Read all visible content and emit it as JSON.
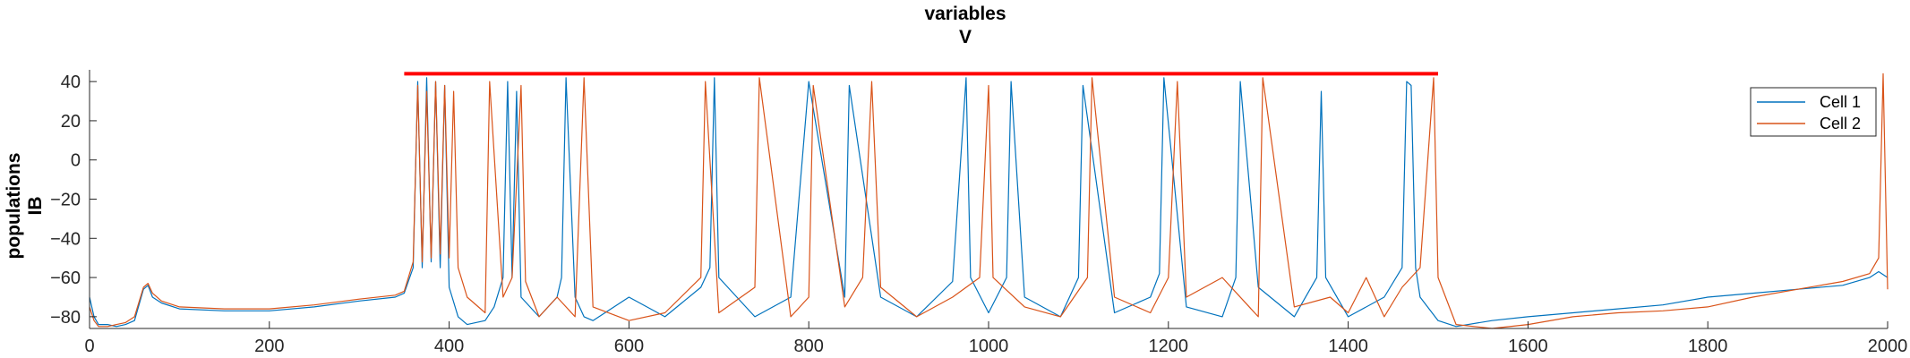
{
  "chart_data": {
    "type": "line",
    "title": "variables",
    "subtitle": "V",
    "ylabel": "populations",
    "ylabel2": "IB",
    "xlabel": "",
    "xlim": [
      0,
      2000
    ],
    "ylim": [
      -86,
      46
    ],
    "xticks": [
      0,
      200,
      400,
      600,
      800,
      1000,
      1200,
      1400,
      1600,
      1800,
      2000
    ],
    "yticks": [
      -80,
      -60,
      -40,
      -20,
      0,
      20,
      40
    ],
    "xtick_labels": [
      "0",
      "200",
      "400",
      "600",
      "800",
      "1000",
      "1200",
      "1400",
      "1600",
      "1800",
      "2000"
    ],
    "ytick_labels": [
      "-80",
      "-60",
      "-40",
      "-20",
      "0",
      "20",
      "40"
    ],
    "grid": false,
    "legend_position": "top-right",
    "stim_bar": {
      "x": [
        350,
        1500
      ],
      "y": 44,
      "color": "#ff0000"
    },
    "series": [
      {
        "name": "Cell 1",
        "color": "#0072BD",
        "x": [
          0,
          5,
          10,
          20,
          30,
          40,
          50,
          60,
          65,
          70,
          80,
          100,
          150,
          200,
          250,
          300,
          340,
          350,
          360,
          365,
          370,
          375,
          380,
          385,
          390,
          395,
          400,
          410,
          420,
          440,
          450,
          460,
          465,
          470,
          475,
          480,
          500,
          520,
          525,
          530,
          540,
          550,
          560,
          600,
          640,
          680,
          690,
          695,
          700,
          740,
          780,
          800,
          840,
          845,
          880,
          920,
          960,
          975,
          980,
          1000,
          1020,
          1025,
          1040,
          1080,
          1100,
          1105,
          1140,
          1180,
          1190,
          1195,
          1220,
          1260,
          1275,
          1280,
          1300,
          1340,
          1365,
          1370,
          1375,
          1400,
          1440,
          1460,
          1465,
          1470,
          1475,
          1480,
          1500,
          1520,
          1560,
          1600,
          1650,
          1700,
          1750,
          1800,
          1850,
          1900,
          1950,
          1980,
          1990,
          2000
        ],
        "y": [
          -70,
          -80,
          -84,
          -84,
          -85,
          -84,
          -82,
          -66,
          -64,
          -70,
          -73,
          -76,
          -77,
          -77,
          -75,
          -72,
          -70,
          -68,
          -55,
          40,
          -55,
          42,
          -52,
          40,
          -55,
          38,
          -65,
          -80,
          -84,
          -82,
          -75,
          -60,
          40,
          -60,
          35,
          -70,
          -80,
          -70,
          -60,
          42,
          -70,
          -80,
          -82,
          -70,
          -80,
          -65,
          -55,
          42,
          -60,
          -80,
          -70,
          40,
          -70,
          38,
          -70,
          -80,
          -62,
          42,
          -60,
          -78,
          -60,
          40,
          -70,
          -80,
          -60,
          38,
          -78,
          -70,
          -58,
          42,
          -75,
          -80,
          -60,
          40,
          -65,
          -80,
          -60,
          35,
          -60,
          -80,
          -70,
          -55,
          40,
          38,
          -55,
          -70,
          -82,
          -85,
          -82,
          -80,
          -78,
          -76,
          -74,
          -70,
          -68,
          -66,
          -64,
          -60,
          -57,
          -60
        ]
      },
      {
        "name": "Cell 2",
        "color": "#D95319",
        "x": [
          0,
          5,
          10,
          20,
          30,
          40,
          50,
          60,
          65,
          70,
          80,
          100,
          150,
          200,
          250,
          300,
          340,
          350,
          360,
          365,
          370,
          375,
          380,
          385,
          390,
          395,
          400,
          405,
          410,
          420,
          440,
          445,
          460,
          470,
          480,
          485,
          500,
          520,
          540,
          550,
          560,
          600,
          640,
          680,
          685,
          700,
          740,
          745,
          780,
          800,
          805,
          840,
          860,
          870,
          880,
          920,
          960,
          990,
          1000,
          1005,
          1040,
          1080,
          1110,
          1115,
          1140,
          1180,
          1200,
          1210,
          1220,
          1260,
          1300,
          1305,
          1340,
          1380,
          1400,
          1420,
          1440,
          1460,
          1480,
          1495,
          1500,
          1520,
          1560,
          1600,
          1650,
          1700,
          1750,
          1800,
          1850,
          1900,
          1950,
          1980,
          1990,
          1995,
          2000
        ],
        "y": [
          -75,
          -82,
          -85,
          -85,
          -84,
          -83,
          -80,
          -65,
          -63,
          -68,
          -72,
          -75,
          -76,
          -76,
          -74,
          -71,
          -69,
          -67,
          -52,
          38,
          -52,
          35,
          -50,
          40,
          -48,
          38,
          -50,
          35,
          -55,
          -70,
          -78,
          40,
          -70,
          -60,
          38,
          -62,
          -80,
          -70,
          -80,
          42,
          -75,
          -82,
          -78,
          -60,
          40,
          -78,
          -65,
          42,
          -80,
          -70,
          38,
          -75,
          -60,
          40,
          -65,
          -80,
          -70,
          -60,
          38,
          -60,
          -75,
          -80,
          -60,
          42,
          -70,
          -78,
          -60,
          40,
          -70,
          -60,
          -80,
          42,
          -75,
          -70,
          -78,
          -60,
          -80,
          -65,
          -55,
          42,
          -60,
          -84,
          -86,
          -84,
          -80,
          -78,
          -77,
          -75,
          -70,
          -66,
          -62,
          -58,
          -50,
          44,
          -66
        ]
      }
    ]
  }
}
